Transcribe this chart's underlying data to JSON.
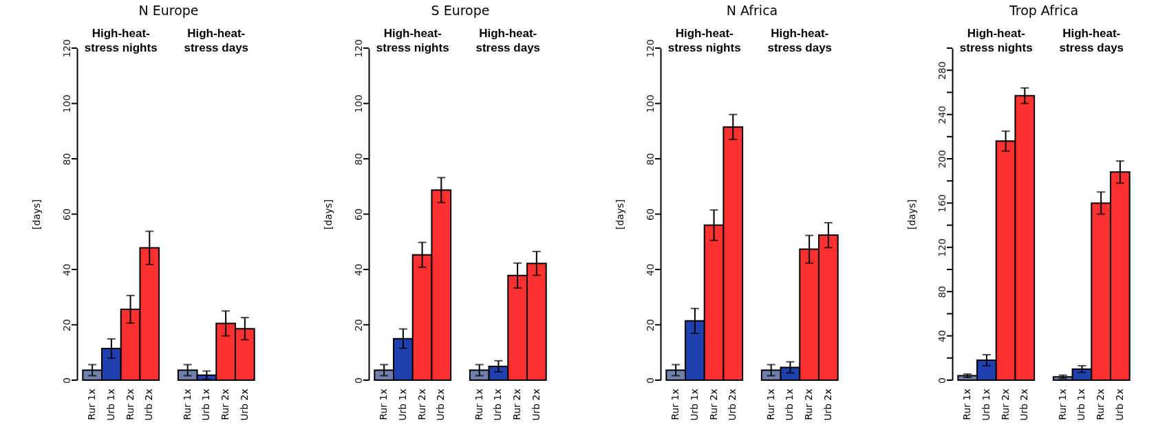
{
  "chart_data": [
    {
      "type": "bar",
      "title": "N Europe",
      "ylabel": "[days]",
      "annotations": [
        "High-heat-stress nights",
        "High-heat-stress days"
      ],
      "categories": [
        "Rur 1x",
        "Urb 1x",
        "Rur 2x",
        "Urb 2x",
        null,
        "Rur 1x",
        "Urb 1x",
        "Rur 2x",
        "Urb 2x"
      ],
      "values": [
        3.6,
        11.4,
        25.6,
        47.8,
        null,
        3.6,
        1.8,
        20.5,
        18.6
      ],
      "errors": [
        2,
        3.5,
        5,
        6,
        null,
        2,
        1.5,
        4.5,
        4
      ],
      "colors": [
        "#7080a8",
        "#2040b0",
        "#ff3030",
        "#ff3030",
        null,
        "#7080a8",
        "#2040b0",
        "#ff3030",
        "#ff3030"
      ],
      "ylim": [
        0,
        120
      ],
      "yticks": [
        0,
        20,
        40,
        60,
        80,
        100,
        120
      ]
    },
    {
      "type": "bar",
      "title": "S Europe",
      "ylabel": "[days]",
      "annotations": [
        "High-heat-stress nights",
        "High-heat-stress days"
      ],
      "categories": [
        "Rur 1x",
        "Urb 1x",
        "Rur 2x",
        "Urb 2x",
        null,
        "Rur 1x",
        "Urb 1x",
        "Rur 2x",
        "Urb 2x"
      ],
      "values": [
        3.6,
        15,
        45.3,
        68.7,
        null,
        3.6,
        5,
        37.8,
        42.2
      ],
      "errors": [
        2,
        3.5,
        4.5,
        4.5,
        null,
        2,
        2,
        4.5,
        4.3
      ],
      "colors": [
        "#7080a8",
        "#2040b0",
        "#ff3030",
        "#ff3030",
        null,
        "#7080a8",
        "#2040b0",
        "#ff3030",
        "#ff3030"
      ],
      "ylim": [
        0,
        120
      ],
      "yticks": [
        0,
        20,
        40,
        60,
        80,
        100,
        120
      ]
    },
    {
      "type": "bar",
      "title": "N Africa",
      "ylabel": "[days]",
      "annotations": [
        "High-heat-stress nights",
        "High-heat-stress days"
      ],
      "categories": [
        "Rur 1x",
        "Urb 1x",
        "Rur 2x",
        "Urb 2x",
        null,
        "Rur 1x",
        "Urb 1x",
        "Rur 2x",
        "Urb 2x"
      ],
      "values": [
        3.6,
        21.4,
        56,
        91.5,
        null,
        3.6,
        4.6,
        47.3,
        52.4
      ],
      "errors": [
        2,
        4.5,
        5.5,
        4.5,
        null,
        2,
        2,
        5,
        4.5
      ],
      "colors": [
        "#7080a8",
        "#2040b0",
        "#ff3030",
        "#ff3030",
        null,
        "#7080a8",
        "#2040b0",
        "#ff3030",
        "#ff3030"
      ],
      "ylim": [
        0,
        120
      ],
      "yticks": [
        0,
        20,
        40,
        60,
        80,
        100,
        120
      ]
    },
    {
      "type": "bar",
      "title": "Trop Africa",
      "ylabel": "[days]",
      "annotations": [
        "High-heat-stress nights",
        "High-heat-stress days"
      ],
      "categories": [
        "Rur 1x",
        "Urb 1x",
        "Rur 2x",
        "Urb 2x",
        null,
        "Rur 1x",
        "Urb 1x",
        "Rur 2x",
        "Urb 2x"
      ],
      "values": [
        4,
        18,
        216,
        257,
        null,
        3,
        10,
        160,
        188
      ],
      "errors": [
        1.5,
        5,
        9,
        7,
        null,
        1.5,
        3,
        10,
        10
      ],
      "colors": [
        "#7080a8",
        "#2040b0",
        "#ff3030",
        "#ff3030",
        null,
        "#7080a8",
        "#2040b0",
        "#ff3030",
        "#ff3030"
      ],
      "ylim": [
        0,
        300
      ],
      "yticks": [
        0,
        {
          "value": 20,
          "label": null
        },
        40,
        {
          "value": 60,
          "label": null
        },
        80,
        {
          "value": 100,
          "label": null
        },
        120,
        {
          "value": 140,
          "label": null
        },
        160,
        {
          "value": 180,
          "label": null
        },
        200,
        {
          "value": 220,
          "label": null
        },
        240,
        {
          "value": 260,
          "label": null
        },
        280,
        {
          "value": 300,
          "label": null
        }
      ]
    }
  ]
}
